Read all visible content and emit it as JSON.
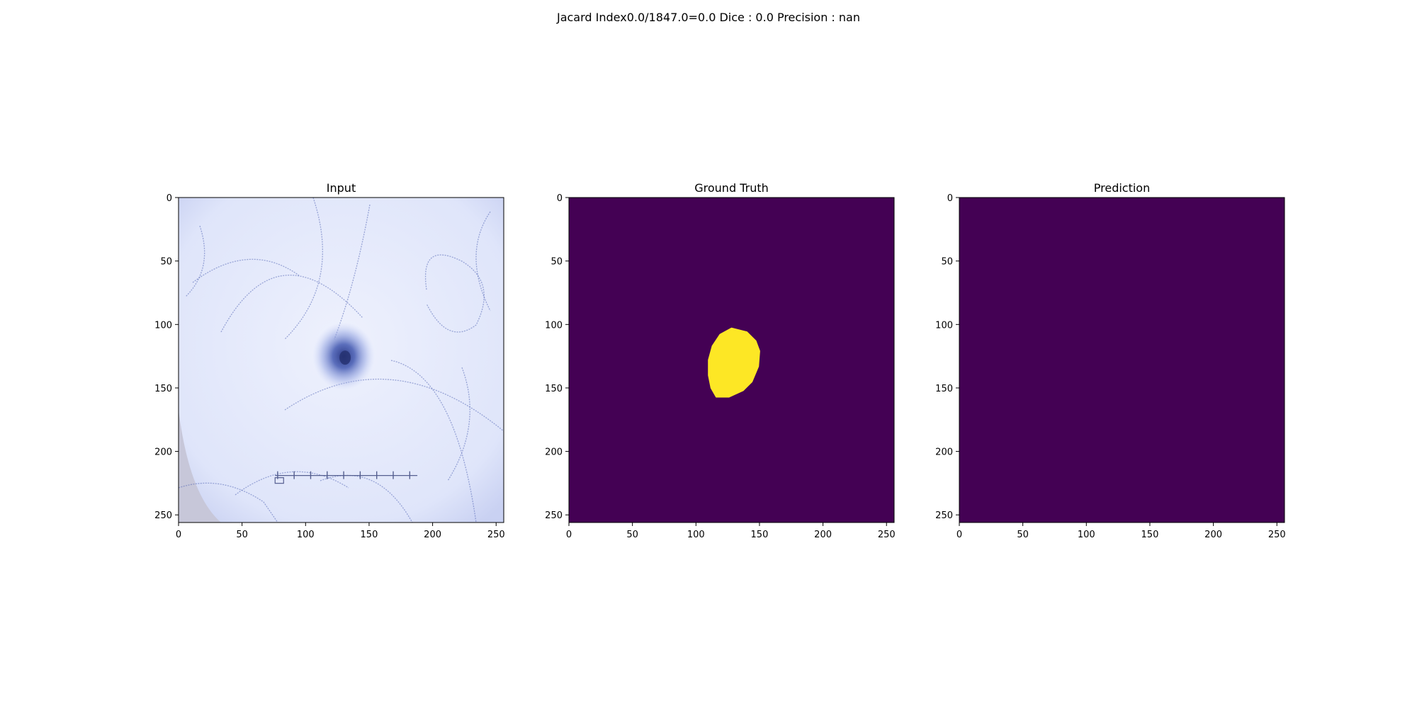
{
  "suptitle": "Jacard Index0.0/1847.0=0.0 Dice : 0.0 Precision : nan",
  "colors": {
    "background": "#440154",
    "mask_foreground": "#fde725",
    "skin": "#e4e9fb",
    "lesion": "#3d4f9a",
    "hair": "#5a6bb8"
  },
  "chart_data": [
    {
      "type": "image",
      "title": "Input",
      "content": "dermoscopy image of a skin lesion with hairs and a ruler",
      "xlim": [
        0,
        256
      ],
      "ylim": [
        256,
        0
      ],
      "xticks": [
        0,
        50,
        100,
        150,
        200,
        250
      ],
      "yticks": [
        0,
        50,
        100,
        150,
        200,
        250
      ],
      "lesion_center": [
        130,
        125
      ]
    },
    {
      "type": "heatmap",
      "title": "Ground Truth",
      "colormap": "viridis",
      "values": [
        0,
        1
      ],
      "xlim": [
        0,
        256
      ],
      "ylim": [
        256,
        0
      ],
      "xticks": [
        0,
        50,
        100,
        150,
        200,
        250
      ],
      "yticks": [
        0,
        50,
        100,
        150,
        200,
        250
      ],
      "mask_outline": [
        [
          128,
          103
        ],
        [
          140,
          106
        ],
        [
          147,
          113
        ],
        [
          150,
          121
        ],
        [
          149,
          133
        ],
        [
          144,
          145
        ],
        [
          137,
          152
        ],
        [
          126,
          157
        ],
        [
          116,
          157
        ],
        [
          112,
          150
        ],
        [
          110,
          140
        ],
        [
          110,
          128
        ],
        [
          113,
          117
        ],
        [
          119,
          108
        ]
      ]
    },
    {
      "type": "heatmap",
      "title": "Prediction",
      "colormap": "viridis",
      "values": [
        0
      ],
      "xlim": [
        0,
        256
      ],
      "ylim": [
        256,
        0
      ],
      "xticks": [
        0,
        50,
        100,
        150,
        200,
        250
      ],
      "yticks": [
        0,
        50,
        100,
        150,
        200,
        250
      ]
    }
  ]
}
